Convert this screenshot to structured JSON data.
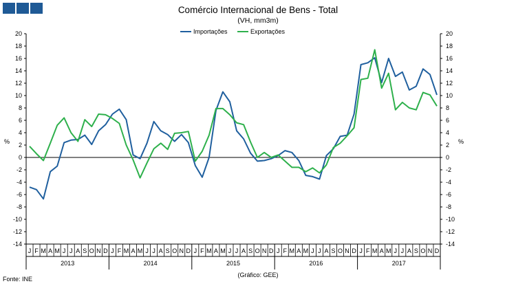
{
  "header": {
    "title": "Comércio Internacional de Bens - Total",
    "subtitle": "(VH, mm3m)"
  },
  "footer": {
    "source": "Fonte: INE",
    "credit": "(Gráfico: GEE)"
  },
  "icons": {
    "logo": "blue-squares-logo"
  },
  "colors": {
    "import": "#1f5f9e",
    "export": "#2db04b",
    "axis": "#000000",
    "grid": "#000000"
  },
  "chart_data": {
    "type": "line",
    "title": "Comércio Internacional de Bens - Total",
    "subtitle": "(VH, mm3m)",
    "ylabel_left": "%",
    "ylabel_right": "%",
    "ylim": [
      -14,
      20
    ],
    "yticks": [
      -14,
      -12,
      -10,
      -8,
      -6,
      -4,
      -2,
      0,
      2,
      4,
      6,
      8,
      10,
      12,
      14,
      16,
      18,
      20
    ],
    "grid": false,
    "legend_position": "top-center",
    "month_labels": [
      "J",
      "F",
      "M",
      "A",
      "M",
      "J",
      "J",
      "A",
      "S",
      "O",
      "N",
      "D"
    ],
    "years": [
      "2013",
      "2014",
      "2015",
      "2016",
      "2017"
    ],
    "x": [
      "2013-01",
      "2013-02",
      "2013-03",
      "2013-04",
      "2013-05",
      "2013-06",
      "2013-07",
      "2013-08",
      "2013-09",
      "2013-10",
      "2013-11",
      "2013-12",
      "2014-01",
      "2014-02",
      "2014-03",
      "2014-04",
      "2014-05",
      "2014-06",
      "2014-07",
      "2014-08",
      "2014-09",
      "2014-10",
      "2014-11",
      "2014-12",
      "2015-01",
      "2015-02",
      "2015-03",
      "2015-04",
      "2015-05",
      "2015-06",
      "2015-07",
      "2015-08",
      "2015-09",
      "2015-10",
      "2015-11",
      "2015-12",
      "2016-01",
      "2016-02",
      "2016-03",
      "2016-04",
      "2016-05",
      "2016-06",
      "2016-07",
      "2016-08",
      "2016-09",
      "2016-10",
      "2016-11",
      "2016-12",
      "2017-01",
      "2017-02",
      "2017-03",
      "2017-04",
      "2017-05",
      "2017-06",
      "2017-07",
      "2017-08",
      "2017-09",
      "2017-10",
      "2017-11",
      "2017-12"
    ],
    "series": [
      {
        "name": "Importações",
        "color": "#1f5f9e",
        "values": [
          -4.8,
          -5.2,
          -6.7,
          -2.3,
          -1.4,
          2.4,
          2.8,
          2.9,
          3.6,
          2.1,
          4.3,
          5.3,
          7.0,
          7.8,
          6.1,
          0.4,
          -0.2,
          2.3,
          5.8,
          4.3,
          3.7,
          2.6,
          3.7,
          2.4,
          -1.3,
          -3.2,
          0.0,
          7.6,
          10.6,
          9.0,
          4.3,
          3.0,
          0.7,
          -0.6,
          -0.5,
          -0.2,
          0.3,
          1.1,
          0.8,
          -0.5,
          -2.9,
          -3.1,
          -3.5,
          0.3,
          1.4,
          3.4,
          3.6,
          7.0,
          15.0,
          15.3,
          16.1,
          12.1,
          16.0,
          13.1,
          13.8,
          10.9,
          11.5,
          14.3,
          13.4,
          10.1
        ]
      },
      {
        "name": "Exportações",
        "color": "#2db04b",
        "values": [
          1.8,
          0.6,
          -0.5,
          2.3,
          5.2,
          6.4,
          4.0,
          2.6,
          6.1,
          5.0,
          7.0,
          6.9,
          6.3,
          5.5,
          2.0,
          -0.4,
          -3.3,
          -0.9,
          1.4,
          2.3,
          1.3,
          3.9,
          4.0,
          4.2,
          -0.6,
          1.0,
          3.6,
          7.9,
          7.9,
          6.9,
          5.6,
          5.3,
          2.5,
          0.0,
          0.8,
          0.0,
          0.4,
          -0.6,
          -1.6,
          -1.6,
          -2.3,
          -1.7,
          -2.5,
          -1.2,
          1.6,
          2.3,
          3.5,
          4.8,
          12.6,
          12.8,
          17.4,
          11.2,
          13.6,
          7.7,
          8.9,
          8.0,
          7.7,
          10.5,
          10.1,
          8.3
        ]
      }
    ]
  }
}
